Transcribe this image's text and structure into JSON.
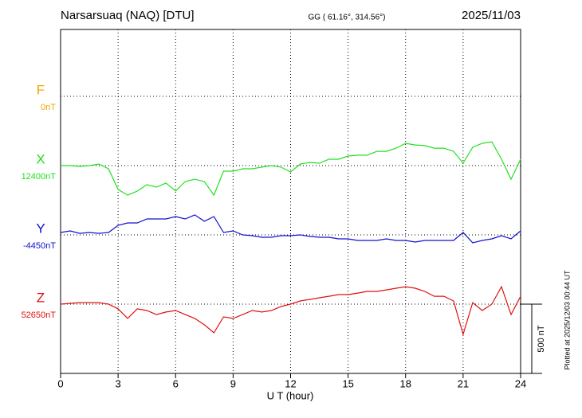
{
  "chart_data": {
    "type": "line",
    "title": "Narsarsuaq (NAQ)  [DTU]",
    "subtitle": "GG ( 61.16°, 314.56°)",
    "date": "2025/11/03",
    "x_label": "U T (hour)",
    "side_note": "Plotted at 2025/12/03 00:44 UT",
    "scale_bar": {
      "value": 500,
      "label": "500 nT"
    },
    "xlim": [
      0,
      24
    ],
    "xticks": [
      0,
      3,
      6,
      9,
      12,
      15,
      18,
      21,
      24
    ],
    "grid": true,
    "x": [
      0,
      0.5,
      1,
      1.5,
      2,
      2.5,
      3,
      3.5,
      4,
      4.5,
      5,
      5.5,
      6,
      6.5,
      7,
      7.5,
      8,
      8.5,
      9,
      9.5,
      10,
      10.5,
      11,
      11.5,
      12,
      12.5,
      13,
      13.5,
      14,
      14.5,
      15,
      15.5,
      16,
      16.5,
      17,
      17.5,
      18,
      18.5,
      19,
      19.5,
      20,
      20.5,
      21,
      21.5,
      22,
      22.5,
      23,
      23.5,
      24
    ],
    "series": [
      {
        "name": "F",
        "color": "#f0a800",
        "baseline": {
          "value": 0,
          "label": "0nT"
        },
        "values": [
          null,
          null,
          null,
          null,
          null,
          null,
          null,
          null,
          null,
          null,
          null,
          null,
          null,
          null,
          null,
          null,
          null,
          null,
          null,
          null,
          null,
          null,
          null,
          null,
          null,
          null,
          null,
          null,
          null,
          null,
          null,
          null,
          null,
          null,
          null,
          null,
          null,
          null,
          null,
          null,
          null,
          null,
          null,
          null,
          null,
          null,
          null,
          null,
          null
        ]
      },
      {
        "name": "X",
        "color": "#22e022",
        "baseline": {
          "value": 12400,
          "label": "12400nT"
        },
        "values": [
          12400,
          12400,
          12394,
          12400,
          12411,
          12377,
          12228,
          12187,
          12216,
          12262,
          12245,
          12274,
          12216,
          12285,
          12302,
          12285,
          12187,
          12360,
          12360,
          12377,
          12377,
          12389,
          12400,
          12389,
          12354,
          12411,
          12423,
          12417,
          12446,
          12446,
          12469,
          12475,
          12475,
          12503,
          12503,
          12526,
          12561,
          12549,
          12544,
          12526,
          12526,
          12503,
          12417,
          12532,
          12561,
          12572,
          12446,
          12302,
          12446
        ]
      },
      {
        "name": "Y",
        "color": "#1010d0",
        "baseline": {
          "value": -4450,
          "label": "-4450nT"
        },
        "values": [
          -4433,
          -4421,
          -4439,
          -4433,
          -4439,
          -4433,
          -4381,
          -4364,
          -4364,
          -4335,
          -4335,
          -4335,
          -4318,
          -4335,
          -4306,
          -4352,
          -4318,
          -4433,
          -4421,
          -4450,
          -4456,
          -4467,
          -4467,
          -4456,
          -4456,
          -4450,
          -4461,
          -4467,
          -4467,
          -4479,
          -4479,
          -4490,
          -4490,
          -4490,
          -4479,
          -4490,
          -4490,
          -4502,
          -4490,
          -4490,
          -4490,
          -4490,
          -4433,
          -4507,
          -4490,
          -4479,
          -4456,
          -4479,
          -4421
        ]
      },
      {
        "name": "Z",
        "color": "#e01010",
        "baseline": {
          "value": 52650,
          "label": "52650nT"
        },
        "values": [
          52650,
          52656,
          52661,
          52661,
          52661,
          52650,
          52616,
          52547,
          52616,
          52604,
          52575,
          52593,
          52604,
          52575,
          52547,
          52501,
          52443,
          52558,
          52547,
          52575,
          52604,
          52593,
          52604,
          52633,
          52650,
          52673,
          52684,
          52696,
          52707,
          52719,
          52719,
          52730,
          52742,
          52742,
          52753,
          52765,
          52776,
          52765,
          52742,
          52707,
          52707,
          52673,
          52432,
          52661,
          52604,
          52650,
          52776,
          52575,
          52707
        ]
      }
    ]
  }
}
